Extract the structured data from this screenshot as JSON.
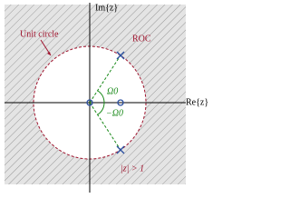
{
  "axes": {
    "imaginary": "Im{z}",
    "real": "Re{z}"
  },
  "labels": {
    "unit_circle": "Unit circle",
    "roc": "ROC",
    "angle_pos": "Ω0",
    "angle_neg": "−Ω0",
    "region": "|z| > 1"
  }
}
